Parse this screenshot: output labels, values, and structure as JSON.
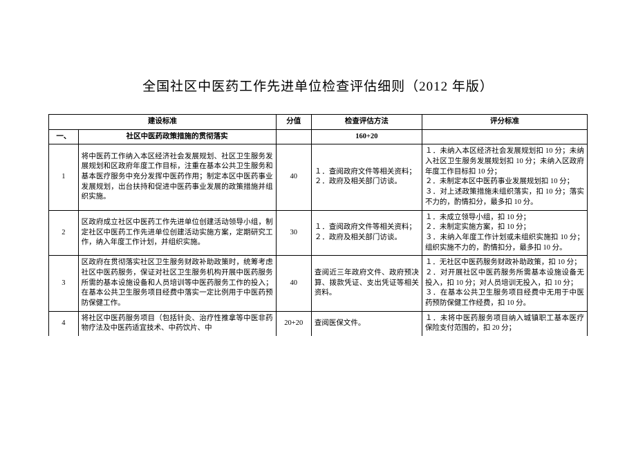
{
  "title": "全国社区中医药工作先进单位检查评估细则（2012 年版）",
  "headers": {
    "col1": "",
    "col2": "建设标准",
    "col3": "分值",
    "col4": "检查评估方法",
    "col5": "评分标准"
  },
  "section": {
    "idx": "一、",
    "label": "社区中医药政策措施的贯彻落实",
    "score": "160+20"
  },
  "rows": [
    {
      "idx": "1",
      "std": "将中医药工作纳入本区经济社会发展规划、社区卫生服务发展规划和区政府年度工作目标，注重在基本公共卫生服务和基本医疗服务中充分发挥中医药作用；制定本区中医药事业发展规划，出台扶持和促进中医药事业发展的政策措施并组织实施。",
      "score": "40",
      "method": "１．查阅政府文件等相关资料；\n２．政府及相关部门访谈。",
      "crit": "１．未纳入本区经济社会发展规划扣 10 分；未纳入社区卫生服务发展规划扣 10 分；未纳入区政府年度工作目标扣 10 分；\n２．未制定本区中医药事业发展规划扣 10 分；\n３．对上述政策措施未组织落实，扣 10 分；落实不力的，酌情扣分，最多扣 10 分。"
    },
    {
      "idx": "2",
      "std": "区政府成立社区中医药工作先进单位创建活动领导小组，制定社区中医药工作先进单位创建活动实施方案，定期研究工作，纳入年度工作计划，并组织实施。",
      "score": "30",
      "method": "１．查阅政府文件等相关资料；\n２．政府及相关部门访谈。",
      "crit": "１．未成立领导小组，扣 10 分；\n２．未制定实施方案，扣 10 分；\n３．未纳入年度工作计划或未组织实施扣 10 分；组织实施不力的，酌情扣分，最多扣 10 分。"
    },
    {
      "idx": "3",
      "std": "区政府在贯彻落实社区卫生服务财政补助政策时，统筹考虑社区中医药服务，保证对社区卫生服务机构开展中医药服务所需的基本设施设备和人员培训等中医药服务工作的投入；在基本公共卫生服务项目经费中落实一定比例用于中医药预防保健工作。",
      "score": "40",
      "method": "查阅近三年政府文件、政府预决算、拨款凭证、支出凭证等相关资料。",
      "crit": "１．无社区中医药服务财政补助政策，扣 10 分；\n２．对开展社区中医药服务所需基本设施设备无投入，扣 10 分；对人员培训无投入，扣 10 分；\n３．在基本公共卫生服务项目经费中无用于中医药预防保健工作经费，扣 10 分。"
    },
    {
      "idx": "4",
      "std": "将社区中医药服务项目（包括针灸、治疗性推拿等中医非药物疗法及中医药适宜技术、中药饮片、中",
      "score": "20+20",
      "method": "查阅医保文件。",
      "crit": "１．未将中医药服务项目纳入城镇职工基本医疗保险支付范围的，扣 20 分；"
    }
  ]
}
